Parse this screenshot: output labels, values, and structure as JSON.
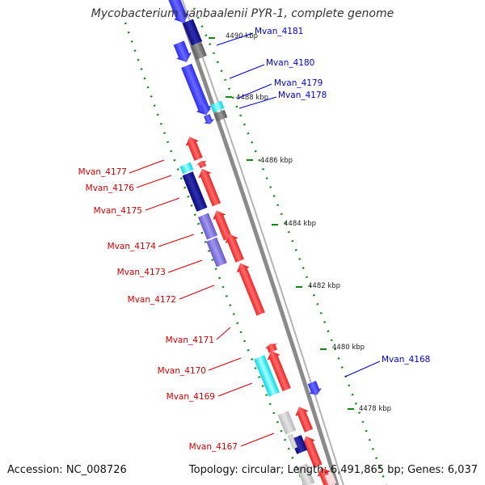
{
  "title": "Mycobacterium vanbaalenii PYR-1, complete genome",
  "footer": {
    "accession": "Accession: NC_008726",
    "summary": "Topology: circular; Length: 6,491,865 bp; Genes: 6,037"
  },
  "colors": {
    "forward_cds": "#ff1a1a",
    "reverse_cds": "#1a1aff",
    "forward_label": "#cc0000",
    "reverse_label": "#0000cc",
    "tick": "#118811",
    "backbone": "#8a8a8a"
  },
  "tick_labels": [
    "4490 kbp",
    "4488 kbp",
    "4486 kbp",
    "4484 kbp",
    "4482 kbp",
    "4480 kbp",
    "4478 kbp"
  ],
  "reverse_gene_labels": [
    "Mvan_4181",
    "Mvan_4180",
    "Mvan_4179",
    "Mvan_4178",
    "Mvan_4168"
  ],
  "forward_gene_labels": [
    "Mvan_4177",
    "Mvan_4176",
    "Mvan_4175",
    "Mvan_4174",
    "Mvan_4173",
    "Mvan_4172",
    "Mvan_4171",
    "Mvan_4170",
    "Mvan_4169",
    "Mvan_4167"
  ]
}
